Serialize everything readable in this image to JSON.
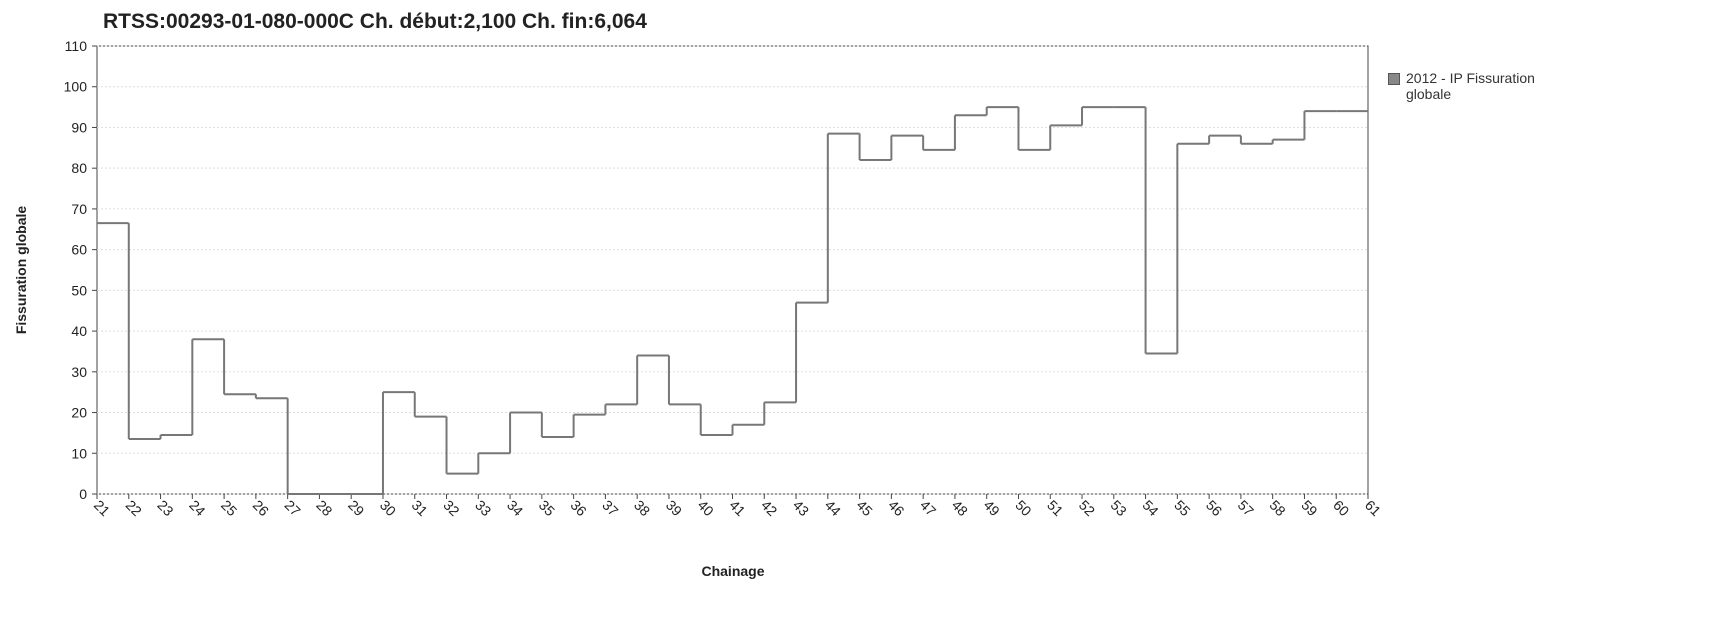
{
  "chart_data": {
    "type": "step",
    "title": "RTSS:00293-01-080-000C   Ch. début:2,100   Ch. fin:6,064",
    "x_label": "Chainage",
    "y_label": "Fissuration globale",
    "series": [
      {
        "name": "2012 - IP Fissuration globale",
        "color": "#777777",
        "x": [
          21,
          22,
          23,
          24,
          25,
          26,
          27,
          28,
          29,
          30,
          31,
          32,
          33,
          34,
          35,
          36,
          37,
          38,
          39,
          40,
          41,
          42,
          43,
          44,
          45,
          46,
          47,
          48,
          49,
          50,
          51,
          52,
          53,
          54,
          55,
          56,
          57,
          58,
          59,
          60
        ],
        "values": [
          66.5,
          13.5,
          14.5,
          38,
          24.5,
          23.5,
          0,
          0,
          0,
          25,
          19,
          5,
          10,
          20,
          14,
          19.5,
          22,
          34,
          22,
          14.5,
          17,
          22.5,
          47,
          88.5,
          82,
          88,
          84.5,
          93,
          95,
          84.5,
          90.5,
          95,
          95,
          34.5,
          86,
          88,
          86,
          87,
          94,
          94
        ]
      }
    ],
    "xlim": [
      21,
      61
    ],
    "xticks": [
      21,
      22,
      23,
      24,
      25,
      26,
      27,
      28,
      29,
      30,
      31,
      32,
      33,
      34,
      35,
      36,
      37,
      38,
      39,
      40,
      41,
      42,
      43,
      44,
      45,
      46,
      47,
      48,
      49,
      50,
      51,
      52,
      53,
      54,
      55,
      56,
      57,
      58,
      59,
      60,
      61
    ],
    "ylim": [
      0,
      110
    ],
    "yticks": [
      0,
      10,
      20,
      30,
      40,
      50,
      60,
      70,
      80,
      90,
      100,
      110
    ],
    "grid": true
  }
}
